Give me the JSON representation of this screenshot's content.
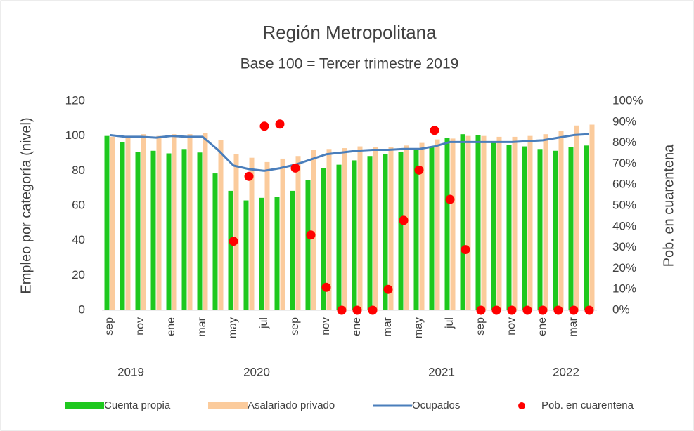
{
  "chart_data": {
    "type": "bar",
    "title": "Región Metropolitana",
    "subtitle": "Base 100 = Tercer trimestre 2019",
    "y_label": "Empleo por categoría (nivel)",
    "y2_label": "Pob. en cuarentena",
    "categories": [
      "sep",
      null,
      "nov",
      null,
      "ene",
      null,
      "mar",
      null,
      "may",
      null,
      "jul",
      null,
      "sep",
      null,
      "nov",
      null,
      "ene",
      null,
      "mar",
      null,
      "may",
      null,
      "jul",
      null,
      "sep",
      null,
      "nov",
      null,
      "ene",
      null,
      "mar",
      null
    ],
    "year_labels": [
      "2019",
      "2020",
      "2021",
      "2022"
    ],
    "series": [
      {
        "name": "Cuenta propia",
        "type": "bar",
        "color": "#1ec81e",
        "values": [
          100,
          96.5,
          91,
          91.5,
          90,
          92.5,
          90.5,
          78.5,
          68.5,
          63,
          64.5,
          65,
          68.5,
          74.5,
          81.5,
          83.5,
          86,
          88.5,
          89.5,
          91,
          92,
          94,
          99,
          101,
          100.5,
          97,
          95,
          94,
          92.5,
          91.5,
          93.5,
          94.5
        ]
      },
      {
        "name": "Asalariado privado",
        "type": "bar",
        "color": "#fbcb9c",
        "values": [
          99.5,
          100,
          101,
          100,
          101,
          101,
          101.5,
          97.5,
          89.5,
          87.5,
          85,
          87,
          88.5,
          92,
          92.5,
          93,
          94,
          93.5,
          93.5,
          94.5,
          96,
          98,
          98.5,
          100,
          100,
          99.5,
          99.5,
          100,
          101,
          103,
          106,
          106.5
        ]
      },
      {
        "name": "Ocupados",
        "type": "line",
        "color": "#4a7ebb",
        "values": [
          100.5,
          99.5,
          99.5,
          99,
          100,
          99.5,
          99.5,
          92,
          83,
          81,
          80,
          81.5,
          83.5,
          86.5,
          89.5,
          90.5,
          91.5,
          92,
          92,
          92.5,
          92.5,
          94,
          96.5,
          96.5,
          96.5,
          96.5,
          96.5,
          97,
          97.5,
          99,
          100.5,
          101
        ]
      },
      {
        "name": "Pob. en cuarentena",
        "type": "scatter",
        "axis": "y2",
        "color": "#ff0000",
        "values": [
          null,
          null,
          null,
          null,
          null,
          null,
          null,
          null,
          33,
          64,
          88,
          89,
          68,
          36,
          11,
          0,
          0,
          0,
          10,
          43,
          67,
          86,
          53,
          29,
          0,
          0,
          0,
          0,
          0,
          0,
          0,
          0
        ]
      }
    ],
    "ylim": [
      0,
      120
    ],
    "yticks": [
      0,
      20,
      40,
      60,
      80,
      100,
      120
    ],
    "y2lim": [
      0,
      100
    ],
    "y2ticks": [
      {
        "value": 0,
        "label": "0%"
      },
      {
        "value": 10,
        "label": "10%"
      },
      {
        "value": 20,
        "label": "20%"
      },
      {
        "value": 30,
        "label": "30%"
      },
      {
        "value": 40,
        "label": "40%"
      },
      {
        "value": 50,
        "label": "50%"
      },
      {
        "value": 60,
        "label": "60%"
      },
      {
        "value": 70,
        "label": "70%"
      },
      {
        "value": 80,
        "label": "80%"
      },
      {
        "value": 90,
        "label": "90%"
      },
      {
        "value": 100,
        "label": "100%"
      }
    ],
    "legend": "bottom",
    "grid": false
  }
}
